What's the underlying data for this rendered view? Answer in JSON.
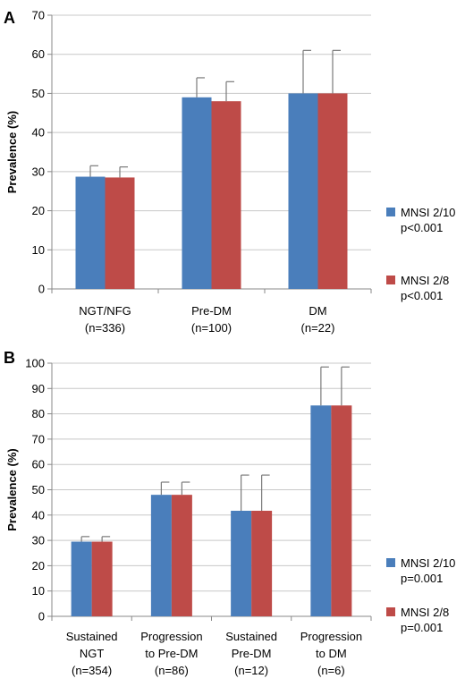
{
  "chart_data": [
    {
      "panel": "A",
      "type": "bar",
      "ylabel": "Prevalence (%)",
      "ylim": [
        0,
        70
      ],
      "yticks": [
        0,
        10,
        20,
        30,
        40,
        50,
        60,
        70
      ],
      "grid": true,
      "legend_position": "right",
      "categories": [
        [
          "NGT/NFG",
          "(n=336)"
        ],
        [
          "Pre-DM",
          "(n=100)"
        ],
        [
          "DM",
          "(n=22)"
        ]
      ],
      "series": [
        {
          "name": "MNSI 2/10",
          "note": "p<0.001",
          "color": "#4a7ebb",
          "values": [
            28.7,
            49,
            50
          ],
          "error_upper": [
            31.5,
            54,
            61
          ]
        },
        {
          "name": "MNSI 2/8",
          "note": "p<0.001",
          "color": "#be4b48",
          "values": [
            28.5,
            48,
            50
          ],
          "error_upper": [
            31.2,
            53,
            61
          ]
        }
      ]
    },
    {
      "panel": "B",
      "type": "bar",
      "ylabel": "Prevalence (%)",
      "ylim": [
        0,
        100
      ],
      "yticks": [
        0,
        10,
        20,
        30,
        40,
        50,
        60,
        70,
        80,
        90,
        100
      ],
      "grid": true,
      "legend_position": "right",
      "categories": [
        [
          "Sustained",
          "NGT",
          "(n=354)"
        ],
        [
          "Progression",
          "to Pre-DM",
          "(n=86)"
        ],
        [
          "Sustained",
          "Pre-DM",
          "(n=12)"
        ],
        [
          "Progression",
          "to DM",
          "(n=6)"
        ]
      ],
      "series": [
        {
          "name": "MNSI 2/10",
          "note": "p=0.001",
          "color": "#4a7ebb",
          "values": [
            29.5,
            48,
            41.7,
            83.3
          ],
          "error_upper": [
            31.5,
            53,
            55.8,
            98.5
          ]
        },
        {
          "name": "MNSI 2/8",
          "note": "p=0.001",
          "color": "#be4b48",
          "values": [
            29.5,
            48,
            41.7,
            83.3
          ],
          "error_upper": [
            31.5,
            53,
            55.8,
            98.5
          ]
        }
      ]
    }
  ]
}
